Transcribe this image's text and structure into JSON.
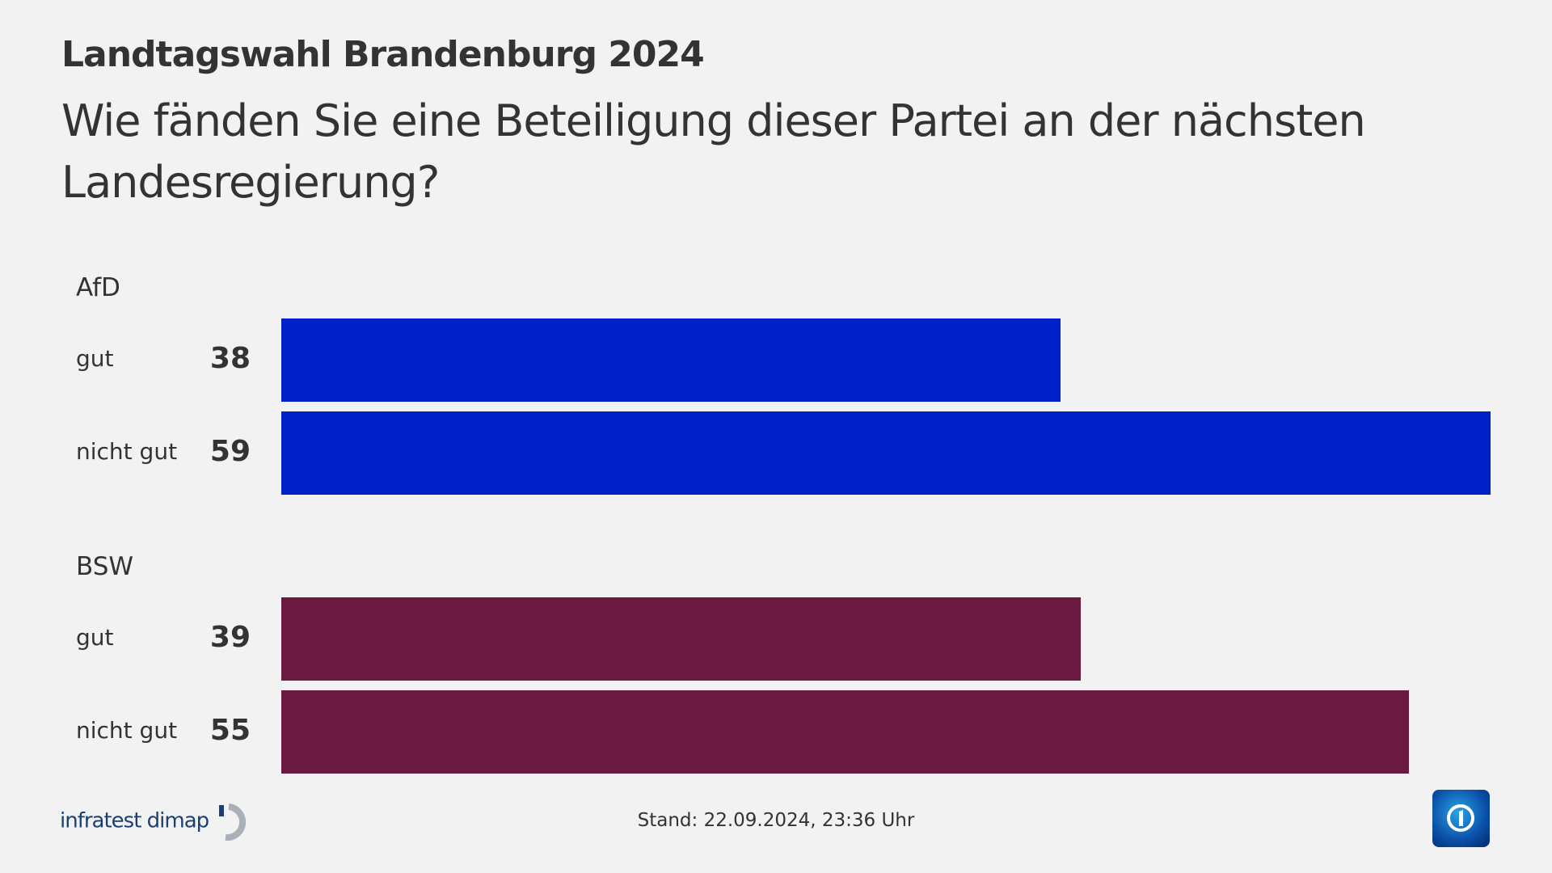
{
  "header": {
    "title": "Landtagswahl Brandenburg 2024",
    "question": "Wie fänden Sie eine Beteiligung dieser Partei an der nächsten Landesregierung?"
  },
  "chart_data": {
    "type": "bar",
    "orientation": "horizontal",
    "title": "Wie fänden Sie eine Beteiligung dieser Partei an der nächsten Landesregierung?",
    "categories": [
      "gut",
      "nicht gut"
    ],
    "groups": [
      {
        "name": "AfD",
        "color": "#0021c8",
        "values": [
          38,
          59
        ]
      },
      {
        "name": "BSW",
        "color": "#6a1a40",
        "values": [
          39,
          55
        ]
      }
    ],
    "grid": false
  },
  "footer": {
    "stand": "Stand:  22.09.2024, 23:36 Uhr",
    "source_logo": "infratest dimap",
    "broadcaster_logo": "tagesschau-icon"
  }
}
